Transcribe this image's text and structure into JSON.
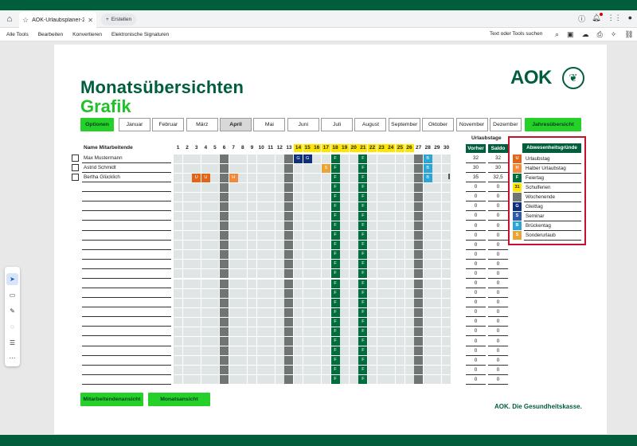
{
  "browser": {
    "tab_title": "AOK-Urlaubsplaner-20...",
    "new_tab_label": "Erstellen"
  },
  "menu": {
    "items": [
      "Alle Tools",
      "Bearbeiten",
      "Konvertieren",
      "Elektronische Signaturen"
    ],
    "search_tools": "Text oder Tools suchen"
  },
  "doc": {
    "title": "Monatsübersichten",
    "subtitle": "Grafik",
    "logo_text": "AOK",
    "footer": "AOK. Die Gesundheitskasse.",
    "options_label": "Optionen",
    "year_overview_label": "Jahresübersicht",
    "months": [
      "Januar",
      "Februar",
      "März",
      "April",
      "Mai",
      "Juni",
      "Juli",
      "August",
      "September",
      "Oktober",
      "November",
      "Dezember"
    ],
    "active_month": "April",
    "employee_view_label": "Mitarbeitendenansicht",
    "month_view_label": "Monatsansicht"
  },
  "grid": {
    "name_header": "Name Mitarbeitende",
    "days": [
      1,
      2,
      3,
      4,
      5,
      6,
      7,
      8,
      9,
      10,
      11,
      12,
      13,
      14,
      15,
      16,
      17,
      18,
      19,
      20,
      21,
      22,
      23,
      24,
      25,
      26,
      27,
      28,
      29,
      30
    ],
    "holiday_days": [
      14,
      15,
      16,
      17,
      18,
      19,
      20,
      21,
      22,
      23,
      24,
      25,
      26
    ],
    "weekend_days": [
      6,
      13,
      27
    ],
    "feiertag_days": [
      18,
      21
    ],
    "rows": [
      {
        "name": "Max Mustermann",
        "entries": {
          "14": "G",
          "15": "G",
          "28": "B"
        },
        "vorher": "32",
        "saldo": "32"
      },
      {
        "name": "Astrid Schmidt",
        "entries": {
          "17": "S",
          "28": "B"
        },
        "vorher": "30",
        "saldo": "30"
      },
      {
        "name": "Bertha Glücklich",
        "entries": {
          "3": "U",
          "4": "U",
          "7": "H",
          "28": "B"
        },
        "vorher": "35",
        "saldo": "32,5"
      },
      {
        "name": "",
        "entries": {},
        "vorher": "0",
        "saldo": "0"
      },
      {
        "name": "",
        "entries": {},
        "vorher": "0",
        "saldo": "0"
      },
      {
        "name": "",
        "entries": {},
        "vorher": "0",
        "saldo": "0"
      },
      {
        "name": "",
        "entries": {},
        "vorher": "0",
        "saldo": "0"
      },
      {
        "name": "",
        "entries": {},
        "vorher": "0",
        "saldo": "0"
      },
      {
        "name": "",
        "entries": {},
        "vorher": "0",
        "saldo": "0"
      },
      {
        "name": "",
        "entries": {},
        "vorher": "0",
        "saldo": "0"
      },
      {
        "name": "",
        "entries": {},
        "vorher": "0",
        "saldo": "0"
      },
      {
        "name": "",
        "entries": {},
        "vorher": "0",
        "saldo": "0"
      },
      {
        "name": "",
        "entries": {},
        "vorher": "0",
        "saldo": "0"
      },
      {
        "name": "",
        "entries": {},
        "vorher": "0",
        "saldo": "0"
      },
      {
        "name": "",
        "entries": {},
        "vorher": "0",
        "saldo": "0"
      },
      {
        "name": "",
        "entries": {},
        "vorher": "0",
        "saldo": "0"
      },
      {
        "name": "",
        "entries": {},
        "vorher": "0",
        "saldo": "0"
      },
      {
        "name": "",
        "entries": {},
        "vorher": "0",
        "saldo": "0"
      },
      {
        "name": "",
        "entries": {},
        "vorher": "0",
        "saldo": "0"
      },
      {
        "name": "",
        "entries": {},
        "vorher": "0",
        "saldo": "0"
      },
      {
        "name": "",
        "entries": {},
        "vorher": "0",
        "saldo": "0"
      },
      {
        "name": "",
        "entries": {},
        "vorher": "0",
        "saldo": "0"
      },
      {
        "name": "",
        "entries": {},
        "vorher": "0",
        "saldo": "0"
      },
      {
        "name": "",
        "entries": {},
        "vorher": "0",
        "saldo": "0"
      }
    ]
  },
  "urlaubstage": {
    "title": "Urlaubstage",
    "vorher_label": "Vorher",
    "saldo_label": "Saldo"
  },
  "reasons": {
    "title": "Abwesenheitsgründe",
    "items": [
      {
        "code": "U",
        "label": "Urlaubstag",
        "color": "#e06518"
      },
      {
        "code": "H",
        "label": "Halber Urlaubstag",
        "color": "#f08a3a"
      },
      {
        "code": "F",
        "label": "Feiertag",
        "color": "#006d3c"
      },
      {
        "code": "31",
        "label": "Schulferien",
        "color": "#ffe600"
      },
      {
        "code": "",
        "label": "Wochenende",
        "color": "#6e7572"
      },
      {
        "code": "G",
        "label": "Gleittag",
        "color": "#0f2f7a"
      },
      {
        "code": "S",
        "label": "Seminar",
        "color": "#2e5aa8"
      },
      {
        "code": "B",
        "label": "Brückentag",
        "color": "#2ba4d6"
      },
      {
        "code": "S",
        "label": "Sonderurlaub",
        "color": "#e8a536"
      }
    ]
  },
  "colors": {
    "aok_dark_green": "#005e3d",
    "aok_bright_green": "#25d129",
    "highlight_red": "#c8102e"
  }
}
